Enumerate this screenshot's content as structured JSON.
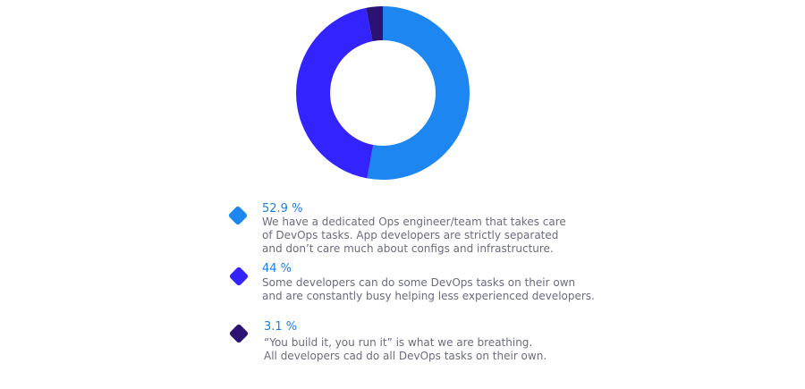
{
  "chart_data": {
    "type": "pie",
    "donut": true,
    "legend_position": "bottom",
    "series": [
      {
        "value": 52.9,
        "label": "52.9 %",
        "description": "We have a dedicated Ops engineer/team that takes care\nof DevOps tasks. App developers are strictly separated\nand don’t care much about configs and infrastructure.",
        "color": "#1e86f0"
      },
      {
        "value": 44,
        "label": "44 %",
        "description": "Some developers can do some DevOps tasks on their own\nand are constantly busy helping less experienced developers.",
        "color": "#3324ff"
      },
      {
        "value": 3.1,
        "label": "3.1 %",
        "description": "“You build it, you run it” is what we are breathing.\nAll developers cad do all DevOps tasks on their own.",
        "color": "#2c1273"
      }
    ]
  }
}
